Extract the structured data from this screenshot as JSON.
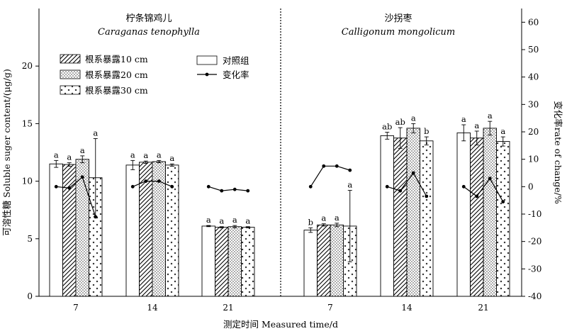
{
  "chart_data": {
    "type": "bar",
    "x_label": "测定时间 Measured time/d",
    "y_label_left": "可溶性糖 Soluble suger content/(μg/g)",
    "y_label_right": "变化率rate of change/%",
    "y_left_range": [
      0,
      25
    ],
    "y_left_ticks": [
      0,
      5,
      10,
      15,
      20
    ],
    "y_right_range": [
      -40,
      65
    ],
    "y_right_ticks": [
      -40,
      -30,
      -20,
      -10,
      0,
      10,
      20,
      30,
      40,
      50,
      60
    ],
    "legend_position": "top-left",
    "legend": [
      {
        "label": "根系暴露10 cm",
        "pattern": "hatch"
      },
      {
        "label": "根系暴露20 cm",
        "pattern": "dots"
      },
      {
        "label": "根系暴露30 cm",
        "pattern": "crosses"
      },
      {
        "label": "对照组",
        "pattern": "white"
      },
      {
        "label": "变化率",
        "pattern": "line"
      }
    ],
    "panels": [
      {
        "title_cn": "柠条锦鸡儿",
        "title_latin": "Caraganas tenophylla",
        "categories": [
          "7",
          "14",
          "21"
        ],
        "groups": [
          {
            "bars": [
              {
                "series": "对照组",
                "value": 11.5,
                "error": 0.3,
                "label": "a"
              },
              {
                "series": "根系暴露10 cm",
                "value": 11.45,
                "error": 0.15,
                "label": "a"
              },
              {
                "series": "根系暴露20 cm",
                "value": 11.9,
                "error": 0.3,
                "label": "a"
              },
              {
                "series": "根系暴露30 cm",
                "value": 10.3,
                "error": 3.4,
                "label": "a"
              }
            ],
            "rate": [
              0,
              -0.5,
              3.5,
              -11
            ]
          },
          {
            "bars": [
              {
                "series": "对照组",
                "value": 11.4,
                "error": 0.4,
                "label": "a"
              },
              {
                "series": "根系暴露10 cm",
                "value": 11.65,
                "error": 0.1,
                "label": "a"
              },
              {
                "series": "根系暴露20 cm",
                "value": 11.7,
                "error": 0.1,
                "label": "a"
              },
              {
                "series": "根系暴露30 cm",
                "value": 11.4,
                "error": 0.1,
                "label": "a"
              }
            ],
            "rate": [
              0,
              2,
              2,
              0
            ]
          },
          {
            "bars": [
              {
                "series": "对照组",
                "value": 6.1,
                "error": 0.05,
                "label": "a"
              },
              {
                "series": "根系暴露10 cm",
                "value": 6.0,
                "error": 0.05,
                "label": "a"
              },
              {
                "series": "根系暴露20 cm",
                "value": 6.05,
                "error": 0.1,
                "label": "a"
              },
              {
                "series": "根系暴露30 cm",
                "value": 6.0,
                "error": 0.05,
                "label": "a"
              }
            ],
            "rate": [
              0,
              -1.5,
              -1,
              -1.5
            ]
          }
        ]
      },
      {
        "title_cn": "沙拐枣",
        "title_latin": "Calligonum mongolicum",
        "categories": [
          "7",
          "14",
          "21"
        ],
        "groups": [
          {
            "bars": [
              {
                "series": "对照组",
                "value": 5.75,
                "error": 0.2,
                "label": "b"
              },
              {
                "series": "根系暴露10 cm",
                "value": 6.2,
                "error": 0.1,
                "label": "a"
              },
              {
                "series": "根系暴露20 cm",
                "value": 6.2,
                "error": 0.15,
                "label": "a"
              },
              {
                "series": "根系暴露30 cm",
                "value": 6.1,
                "error": 3.1,
                "label": "a"
              }
            ],
            "rate": [
              0,
              7.5,
              7.5,
              6
            ]
          },
          {
            "bars": [
              {
                "series": "对照组",
                "value": 13.95,
                "error": 0.3,
                "label": "ab"
              },
              {
                "series": "根系暴露10 cm",
                "value": 13.75,
                "error": 0.9,
                "label": "ab"
              },
              {
                "series": "根系暴露20 cm",
                "value": 14.6,
                "error": 0.4,
                "label": "a"
              },
              {
                "series": "根系暴露30 cm",
                "value": 13.5,
                "error": 0.35,
                "label": "b"
              }
            ],
            "rate": [
              0,
              -1.5,
              5,
              -3.5
            ]
          },
          {
            "bars": [
              {
                "series": "对照组",
                "value": 14.2,
                "error": 0.7,
                "label": "a"
              },
              {
                "series": "根系暴露10 cm",
                "value": 13.75,
                "error": 0.6,
                "label": "a"
              },
              {
                "series": "根系暴露20 cm",
                "value": 14.6,
                "error": 0.6,
                "label": "a"
              },
              {
                "series": "根系暴露30 cm",
                "value": 13.45,
                "error": 0.4,
                "label": "a"
              }
            ],
            "rate": [
              0,
              -3.5,
              3,
              -5.5
            ]
          }
        ]
      }
    ]
  }
}
